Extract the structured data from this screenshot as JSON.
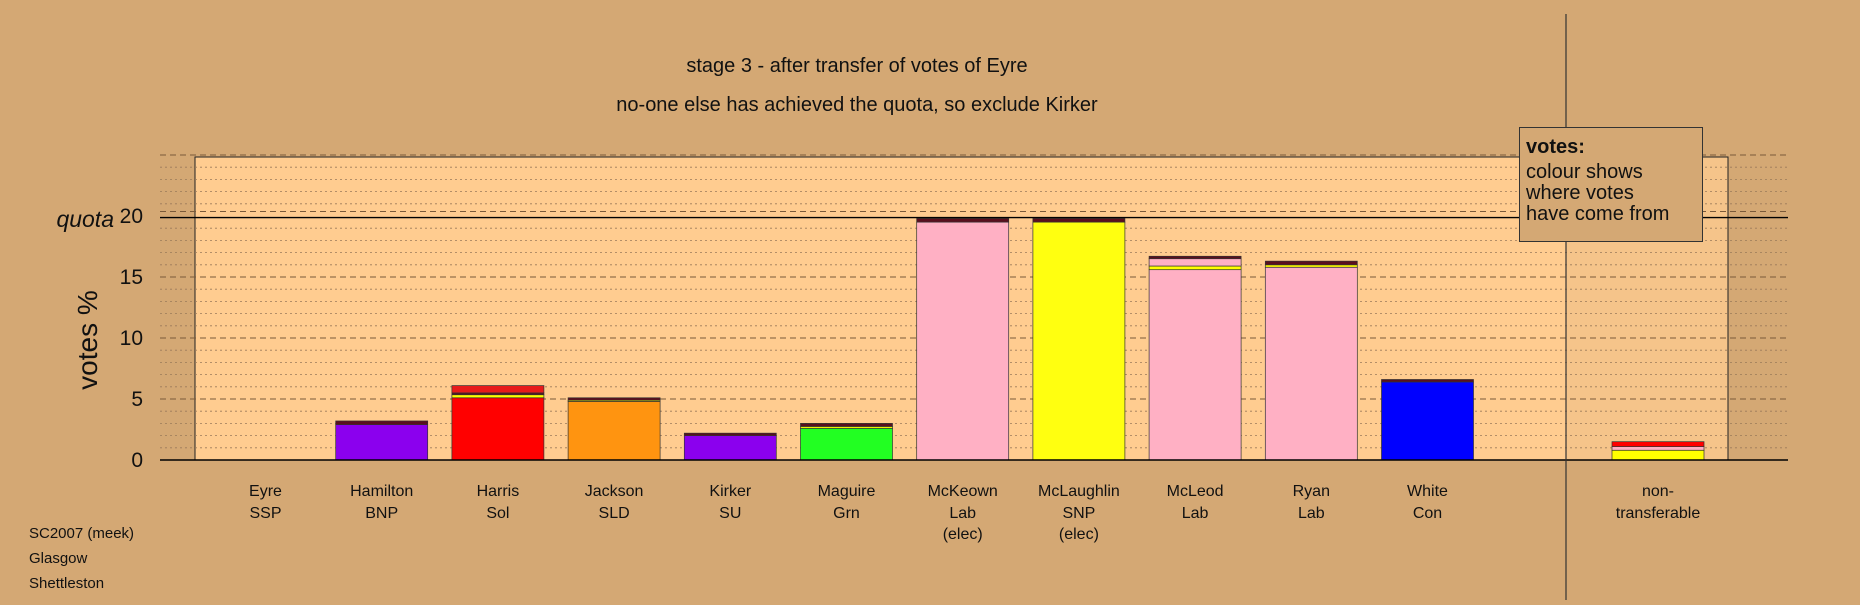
{
  "chart_data": {
    "type": "bar",
    "title": "stage 3 - after transfer of votes of Eyre",
    "subtitle": "no-one else has achieved the quota, so exclude Kirker",
    "ylabel": "votes %",
    "ylim": [
      0,
      25
    ],
    "yticks": [
      "0",
      "5",
      "10",
      "15",
      "20"
    ],
    "quota": 20,
    "quota_label": "quota",
    "grid": true,
    "stacked": true,
    "candidates": [
      {
        "name": "Eyre",
        "party": "SSP",
        "note": "",
        "total": 0,
        "segments": []
      },
      {
        "name": "Hamilton",
        "party": "BNP",
        "note": "",
        "total": 3.2,
        "segments": [
          {
            "value": 2.9,
            "color": "#8b00ee"
          },
          {
            "value": 0.3,
            "color": "#5a0f1e"
          }
        ]
      },
      {
        "name": "Harris",
        "party": "Sol",
        "note": "",
        "total": 6.1,
        "segments": [
          {
            "value": 5.1,
            "color": "#ff0000"
          },
          {
            "value": 0.25,
            "color": "#ffff00"
          },
          {
            "value": 0.15,
            "color": "#5a0f1e"
          },
          {
            "value": 0.6,
            "color": "#e81a1a"
          }
        ]
      },
      {
        "name": "Jackson",
        "party": "SLD",
        "note": "",
        "total": 5.1,
        "segments": [
          {
            "value": 4.8,
            "color": "#ff9410"
          },
          {
            "value": 0.1,
            "color": "#ffff00"
          },
          {
            "value": 0.2,
            "color": "#5a0f1e"
          }
        ]
      },
      {
        "name": "Kirker",
        "party": "SU",
        "note": "",
        "total": 2.2,
        "segments": [
          {
            "value": 2.0,
            "color": "#8b00ee"
          },
          {
            "value": 0.2,
            "color": "#5a0f1e"
          }
        ]
      },
      {
        "name": "Maguire",
        "party": "Grn",
        "note": "",
        "total": 3.0,
        "segments": [
          {
            "value": 2.6,
            "color": "#22ff22"
          },
          {
            "value": 0.15,
            "color": "#ffff00"
          },
          {
            "value": 0.25,
            "color": "#5a0f1e"
          }
        ]
      },
      {
        "name": "McKeown",
        "party": "Lab",
        "note": "(elec)",
        "total": 19.8,
        "segments": [
          {
            "value": 19.5,
            "color": "#ffb0c4"
          },
          {
            "value": 0.3,
            "color": "#5a0f1e"
          }
        ]
      },
      {
        "name": "McLaughlin",
        "party": "SNP",
        "note": "(elec)",
        "total": 19.8,
        "segments": [
          {
            "value": 19.5,
            "color": "#ffff10"
          },
          {
            "value": 0.3,
            "color": "#5a0f1e"
          }
        ]
      },
      {
        "name": "McLeod",
        "party": "Lab",
        "note": "",
        "total": 16.7,
        "segments": [
          {
            "value": 15.6,
            "color": "#ffb0c4"
          },
          {
            "value": 0.3,
            "color": "#ffff00"
          },
          {
            "value": 0.6,
            "color": "#ffb0c4"
          },
          {
            "value": 0.2,
            "color": "#5a0f1e"
          }
        ]
      },
      {
        "name": "Ryan",
        "party": "Lab",
        "note": "",
        "total": 16.3,
        "segments": [
          {
            "value": 15.8,
            "color": "#ffb0c4"
          },
          {
            "value": 0.2,
            "color": "#ffff00"
          },
          {
            "value": 0.3,
            "color": "#5a0f1e"
          }
        ]
      },
      {
        "name": "White",
        "party": "Con",
        "note": "",
        "total": 6.6,
        "segments": [
          {
            "value": 6.4,
            "color": "#0000ff"
          },
          {
            "value": 0.2,
            "color": "#5a0f1e"
          }
        ]
      }
    ],
    "nontransferable": {
      "label_line1": "non-",
      "label_line2": "transferable",
      "total": 1.5,
      "segments": [
        {
          "value": 0.8,
          "color": "#ffff00"
        },
        {
          "value": 0.3,
          "color": "#ffb0c4"
        },
        {
          "value": 0.4,
          "color": "#ff0000"
        }
      ]
    },
    "legend": {
      "title": "votes:",
      "lines": [
        "colour shows",
        "where votes",
        "have come from"
      ],
      "position": "top-right"
    }
  },
  "footer": {
    "line1": "SC2007 (meek)",
    "line2": "Glasgow",
    "line3": "Shettleston"
  },
  "colors": {
    "background": "#d4a874",
    "plot_background": "#ffcc90",
    "quota_line": "#000000"
  }
}
